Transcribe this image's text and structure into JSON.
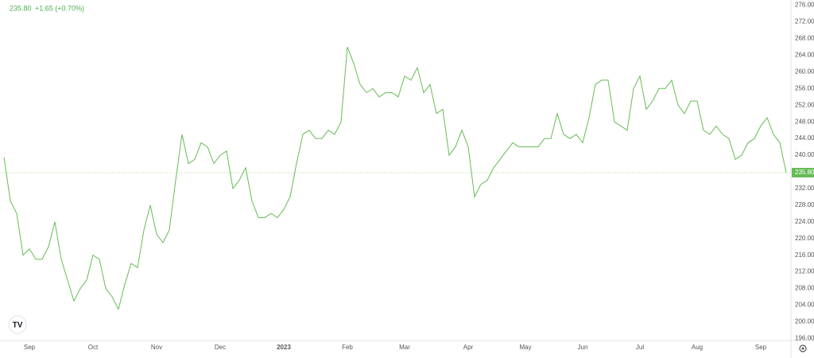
{
  "chart_data": {
    "type": "line",
    "header": {
      "change_label": "+1.65 (+0.70%)"
    },
    "last_value": {
      "value": 235.8,
      "label": "235.80"
    },
    "categories": [
      null,
      null,
      null,
      null,
      "Sep",
      null,
      null,
      null,
      null,
      null,
      null,
      null,
      null,
      null,
      "Oct",
      null,
      null,
      null,
      null,
      null,
      null,
      null,
      null,
      null,
      "Nov",
      null,
      null,
      null,
      null,
      null,
      null,
      null,
      null,
      null,
      "Dec",
      null,
      null,
      null,
      null,
      null,
      null,
      null,
      null,
      null,
      "2023",
      null,
      null,
      null,
      null,
      null,
      null,
      null,
      null,
      null,
      "Feb",
      null,
      null,
      null,
      null,
      null,
      null,
      null,
      null,
      "Mar",
      null,
      null,
      null,
      null,
      null,
      null,
      null,
      null,
      null,
      "Apr",
      null,
      null,
      null,
      null,
      null,
      null,
      null,
      null,
      "May",
      null,
      null,
      null,
      null,
      null,
      null,
      null,
      null,
      "Jun",
      null,
      null,
      null,
      null,
      null,
      null,
      null,
      null,
      "Jul",
      null,
      null,
      null,
      null,
      null,
      null,
      null,
      null,
      "Aug",
      null,
      null,
      null,
      null,
      null,
      null,
      null,
      null,
      null,
      "Sep",
      null,
      null,
      null,
      null
    ],
    "series": [
      {
        "color": "#66bb55",
        "values": [
          239.5,
          229,
          226,
          216,
          217.5,
          215,
          215,
          218,
          224,
          215,
          210,
          205,
          208,
          210,
          216,
          215,
          208,
          206,
          203,
          209,
          214,
          213,
          222,
          228,
          221,
          219,
          222,
          234,
          245,
          238,
          239,
          243,
          242,
          238,
          240,
          241,
          232,
          234,
          237,
          229,
          225,
          225,
          226,
          225,
          227,
          230,
          238,
          245,
          246,
          244,
          244,
          246,
          245,
          248,
          266,
          262,
          257,
          255,
          256,
          254,
          255,
          255,
          254,
          259,
          258,
          261,
          255,
          257,
          250,
          251,
          240,
          242,
          246,
          242,
          230,
          233,
          234,
          237,
          239,
          241,
          243,
          242,
          242,
          242,
          242,
          244,
          244,
          250,
          245,
          244,
          245,
          243,
          249,
          257,
          258,
          258,
          248,
          247,
          246,
          256,
          259,
          251,
          253,
          256,
          256,
          258,
          252,
          250,
          253,
          253,
          246,
          245,
          247,
          245,
          244,
          239,
          240,
          243,
          244,
          247,
          249,
          245,
          243,
          235.8
        ]
      }
    ],
    "ylim": [
      195.5,
      276.5
    ],
    "yticks": [
      {
        "value": 196,
        "label": "196.00"
      },
      {
        "value": 200,
        "label": "200.00"
      },
      {
        "value": 204,
        "label": "204.00"
      },
      {
        "value": 208,
        "label": "208.00"
      },
      {
        "value": 212,
        "label": "212.00"
      },
      {
        "value": 216,
        "label": "216.00"
      },
      {
        "value": 220,
        "label": "220.00"
      },
      {
        "value": 224,
        "label": "224.00"
      },
      {
        "value": 228,
        "label": "228.00"
      },
      {
        "value": 232,
        "label": "232.00"
      },
      {
        "value": 236,
        "label": "236.00"
      },
      {
        "value": 240,
        "label": "240.00"
      },
      {
        "value": 244,
        "label": "244.00"
      },
      {
        "value": 248,
        "label": "248.00"
      },
      {
        "value": 252,
        "label": "252.00"
      },
      {
        "value": 256,
        "label": "256.00"
      },
      {
        "value": 260,
        "label": "260.00"
      },
      {
        "value": 264,
        "label": "264.00"
      },
      {
        "value": 268,
        "label": "268.00"
      },
      {
        "value": 272,
        "label": "272.00"
      },
      {
        "value": 276,
        "label": "276.00"
      }
    ],
    "grid": false
  }
}
